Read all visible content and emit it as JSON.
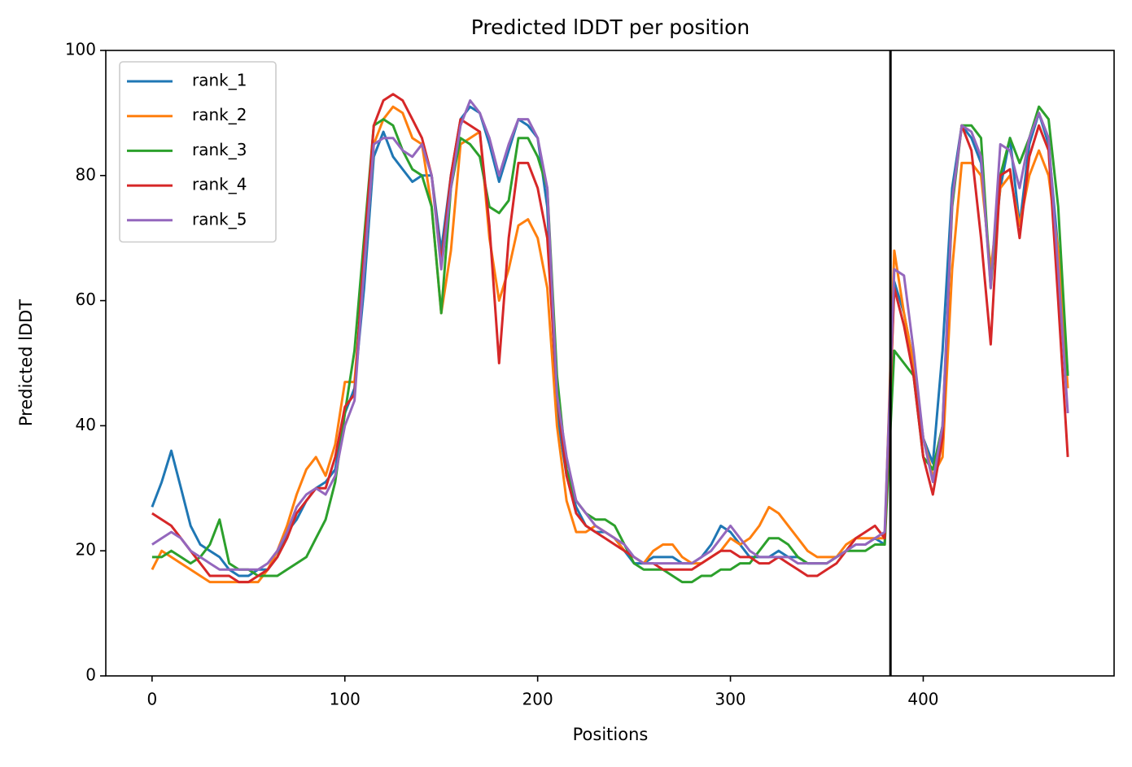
{
  "chart_data": {
    "type": "line",
    "title": "Predicted lDDT per position",
    "xlabel": "Positions",
    "ylabel": "Predicted lDDT",
    "x": [
      0,
      5,
      10,
      15,
      20,
      25,
      30,
      35,
      40,
      45,
      50,
      55,
      60,
      65,
      70,
      75,
      80,
      85,
      90,
      95,
      100,
      105,
      110,
      115,
      120,
      125,
      130,
      135,
      140,
      145,
      150,
      155,
      160,
      165,
      170,
      175,
      180,
      185,
      190,
      195,
      200,
      205,
      210,
      215,
      220,
      225,
      230,
      235,
      240,
      245,
      250,
      255,
      260,
      265,
      270,
      275,
      280,
      285,
      290,
      295,
      300,
      305,
      310,
      315,
      320,
      325,
      330,
      335,
      340,
      345,
      350,
      355,
      360,
      365,
      370,
      375,
      380,
      385,
      390,
      395,
      400,
      405,
      410,
      415,
      420,
      425,
      430,
      435,
      440,
      445,
      450,
      455,
      460,
      465,
      470,
      475
    ],
    "series": [
      {
        "name": "rank_1",
        "color": "#1f77b4",
        "values": [
          27,
          31,
          36,
          30,
          24,
          21,
          20,
          19,
          17,
          16,
          16,
          17,
          17,
          19,
          23,
          25,
          28,
          30,
          31,
          33,
          42,
          46,
          62,
          83,
          87,
          83,
          81,
          79,
          80,
          80,
          68,
          80,
          89,
          91,
          90,
          85,
          79,
          84,
          89,
          88,
          86,
          75,
          42,
          32,
          27,
          24,
          23,
          23,
          22,
          20,
          18,
          18,
          19,
          19,
          19,
          18,
          18,
          19,
          21,
          24,
          23,
          21,
          19,
          19,
          19,
          20,
          19,
          19,
          18,
          18,
          18,
          19,
          20,
          21,
          21,
          22,
          21,
          63,
          58,
          50,
          38,
          34,
          52,
          78,
          88,
          86,
          82,
          63,
          78,
          86,
          72,
          85,
          90,
          85,
          68,
          48
        ]
      },
      {
        "name": "rank_2",
        "color": "#ff7f0e",
        "values": [
          17,
          20,
          19,
          18,
          17,
          16,
          15,
          15,
          15,
          15,
          15,
          15,
          17,
          20,
          24,
          29,
          33,
          35,
          32,
          37,
          47,
          47,
          65,
          85,
          89,
          91,
          90,
          86,
          85,
          75,
          58,
          68,
          85,
          86,
          87,
          70,
          60,
          65,
          72,
          73,
          70,
          62,
          40,
          28,
          23,
          23,
          24,
          23,
          22,
          20,
          19,
          18,
          20,
          21,
          21,
          19,
          18,
          18,
          19,
          20,
          22,
          21,
          22,
          24,
          27,
          26,
          24,
          22,
          20,
          19,
          19,
          19,
          21,
          22,
          22,
          22,
          22,
          68,
          58,
          50,
          38,
          32,
          35,
          65,
          82,
          82,
          80,
          65,
          78,
          80,
          72,
          80,
          84,
          80,
          68,
          46
        ]
      },
      {
        "name": "rank_3",
        "color": "#2ca02c",
        "values": [
          19,
          19,
          20,
          19,
          18,
          19,
          21,
          25,
          18,
          17,
          17,
          16,
          16,
          16,
          17,
          18,
          19,
          22,
          25,
          31,
          42,
          52,
          70,
          88,
          89,
          88,
          84,
          81,
          80,
          75,
          58,
          78,
          86,
          85,
          83,
          75,
          74,
          76,
          86,
          86,
          83,
          78,
          48,
          33,
          28,
          26,
          25,
          25,
          24,
          21,
          18,
          17,
          17,
          17,
          16,
          15,
          15,
          16,
          16,
          17,
          17,
          18,
          18,
          20,
          22,
          22,
          21,
          19,
          18,
          18,
          18,
          19,
          20,
          20,
          20,
          21,
          21,
          52,
          50,
          48,
          35,
          33,
          40,
          75,
          88,
          88,
          86,
          62,
          80,
          86,
          82,
          86,
          91,
          89,
          75,
          48
        ]
      },
      {
        "name": "rank_4",
        "color": "#d62728",
        "values": [
          26,
          25,
          24,
          22,
          20,
          18,
          16,
          16,
          16,
          15,
          15,
          16,
          17,
          19,
          22,
          26,
          28,
          30,
          30,
          35,
          43,
          45,
          68,
          88,
          92,
          93,
          92,
          89,
          86,
          80,
          66,
          80,
          89,
          88,
          87,
          72,
          50,
          70,
          82,
          82,
          78,
          70,
          45,
          32,
          26,
          24,
          23,
          22,
          21,
          20,
          19,
          18,
          18,
          17,
          17,
          17,
          17,
          18,
          19,
          20,
          20,
          19,
          19,
          18,
          18,
          19,
          18,
          17,
          16,
          16,
          17,
          18,
          20,
          22,
          23,
          24,
          22,
          62,
          56,
          48,
          35,
          29,
          38,
          76,
          88,
          84,
          70,
          53,
          80,
          81,
          70,
          83,
          88,
          84,
          60,
          35
        ]
      },
      {
        "name": "rank_5",
        "color": "#9467bd",
        "values": [
          21,
          22,
          23,
          22,
          20,
          19,
          18,
          17,
          17,
          17,
          17,
          17,
          18,
          20,
          23,
          27,
          29,
          30,
          29,
          32,
          40,
          44,
          65,
          85,
          86,
          86,
          84,
          83,
          85,
          80,
          65,
          78,
          88,
          92,
          90,
          86,
          80,
          85,
          89,
          89,
          86,
          78,
          45,
          35,
          28,
          26,
          24,
          23,
          22,
          21,
          19,
          18,
          18,
          18,
          18,
          18,
          18,
          19,
          20,
          22,
          24,
          22,
          20,
          19,
          19,
          19,
          19,
          18,
          18,
          18,
          18,
          19,
          20,
          21,
          21,
          22,
          23,
          65,
          64,
          52,
          38,
          31,
          40,
          76,
          88,
          87,
          83,
          62,
          85,
          84,
          78,
          86,
          90,
          86,
          65,
          42
        ]
      }
    ],
    "vlines": [
      383
    ],
    "vline_color": "#000000",
    "xlim": [
      -24,
      499
    ],
    "xticks": [
      0,
      100,
      200,
      300,
      400
    ],
    "ylim": [
      0,
      100
    ],
    "yticks": [
      0,
      20,
      40,
      60,
      80,
      100
    ],
    "legend": "upper left"
  }
}
